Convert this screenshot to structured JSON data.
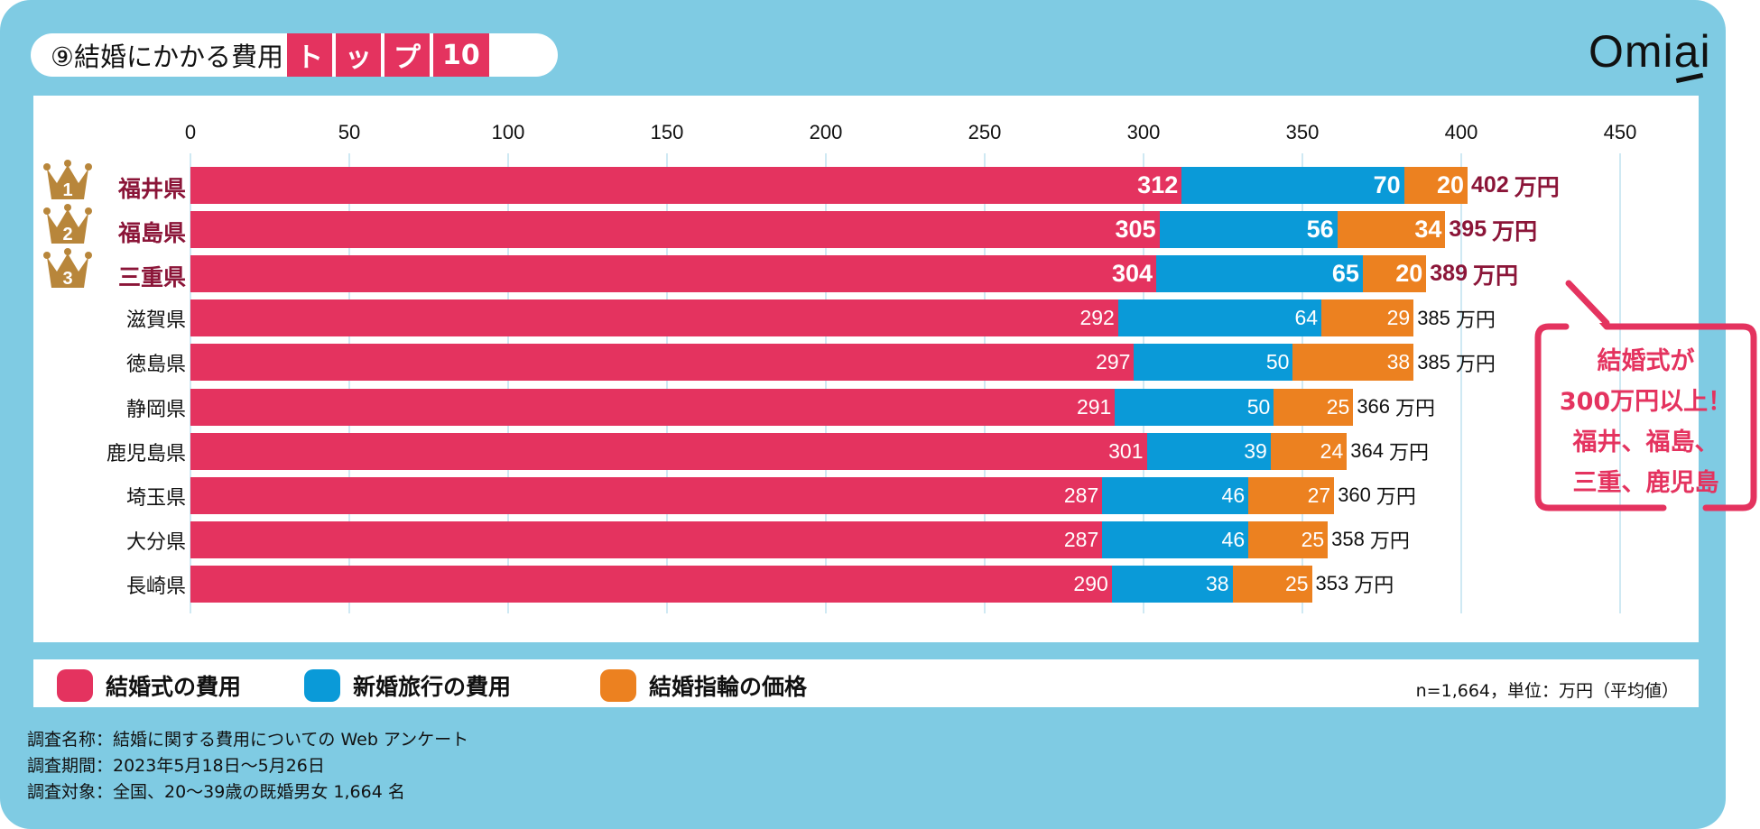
{
  "title": {
    "prefix": "⑨結婚にかかる費用",
    "boxes": [
      "ト",
      "ッ",
      "プ",
      "10"
    ]
  },
  "logo": "Omiai",
  "chart_data": {
    "type": "bar",
    "orientation": "horizontal",
    "stacked": true,
    "xlim": [
      0,
      450
    ],
    "xticks": [
      0,
      50,
      100,
      150,
      200,
      250,
      300,
      350,
      400,
      450
    ],
    "grid": true,
    "categories": [
      "福井県",
      "福島県",
      "三重県",
      "滋賀県",
      "徳島県",
      "静岡県",
      "鹿児島県",
      "埼玉県",
      "大分県",
      "長崎県"
    ],
    "ranks": [
      1,
      2,
      3
    ],
    "series": [
      {
        "name": "結婚式の費用",
        "color": "#e4335f",
        "values": [
          312,
          305,
          304,
          292,
          297,
          291,
          301,
          287,
          287,
          290
        ]
      },
      {
        "name": "新婚旅行の費用",
        "color": "#0a9ad8",
        "values": [
          70,
          56,
          65,
          64,
          50,
          50,
          39,
          46,
          46,
          38
        ]
      },
      {
        "name": "結婚指輪の価格",
        "color": "#ec8120",
        "values": [
          20,
          34,
          20,
          29,
          38,
          25,
          24,
          27,
          25,
          25
        ]
      }
    ],
    "totals": [
      402,
      395,
      389,
      385,
      385,
      366,
      364,
      360,
      358,
      353
    ],
    "total_unit": "万円",
    "legend_position": "bottom",
    "note": "n=1,664，単位：万円（平均値）",
    "annotation": [
      "結婚式が",
      "300万円以上！",
      "福井、福島、",
      "三重、鹿児島"
    ]
  },
  "footer": [
    "調査名称：結婚に関する費用についての Web アンケート",
    "調査期間：2023年5月18日～5月26日",
    "調査対象：全国、20～39歳の既婚男女 1,664 名"
  ],
  "colors": {
    "background": "#7fcbe3",
    "accent": "#e4335f",
    "top_label": "#8b1538",
    "crown": "#b8863b"
  }
}
